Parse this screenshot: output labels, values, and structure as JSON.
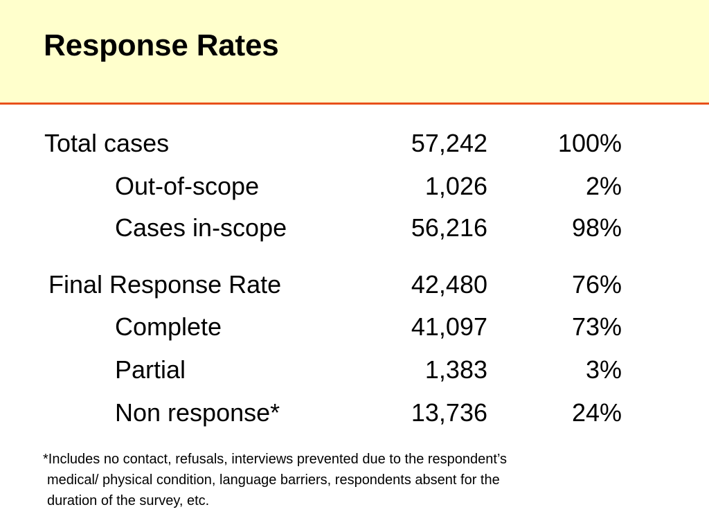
{
  "slide": {
    "title": "Response Rates"
  },
  "table": {
    "rows": [
      {
        "label": "Total cases",
        "count": "57,242",
        "percent": "100%"
      },
      {
        "label": "Out-of-scope",
        "count": "1,026",
        "percent": "2%"
      },
      {
        "label": "Cases in-scope",
        "count": "56,216",
        "percent": "98%"
      },
      {
        "label": "Final Response Rate",
        "count": "42,480",
        "percent": "76%"
      },
      {
        "label": "Complete",
        "count": "41,097",
        "percent": "73%"
      },
      {
        "label": "Partial",
        "count": "1,383",
        "percent": "3%"
      },
      {
        "label": "Non response*",
        "count": "13,736",
        "percent": "24%"
      }
    ]
  },
  "footnote": {
    "line1": "*Includes no contact, refusals, interviews prevented due to the respondent’s",
    "line2": "medical/ physical condition, language barriers, respondents absent for the",
    "line3": "duration of the survey, etc."
  },
  "colors": {
    "header_background": "#ffffcc",
    "header_rule": "#e8501a",
    "text": "#000000"
  }
}
